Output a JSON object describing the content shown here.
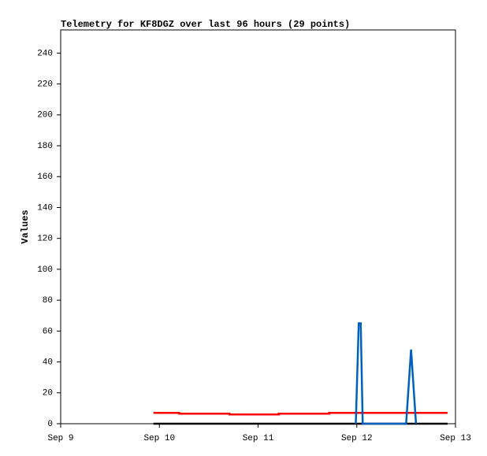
{
  "chart_data": {
    "type": "line",
    "title": "Telemetry for KF8DGZ over last 96 hours (29 points)",
    "y_label": "Values",
    "xlim": [
      0,
      4
    ],
    "xticks": [
      {
        "value": 0,
        "label": "Sep 9"
      },
      {
        "value": 1,
        "label": "Sep 10"
      },
      {
        "value": 2,
        "label": "Sep 11"
      },
      {
        "value": 3,
        "label": "Sep 12"
      },
      {
        "value": 4,
        "label": "Sep 13"
      }
    ],
    "ylim": [
      0,
      255
    ],
    "yticks": [
      0,
      20,
      40,
      60,
      80,
      100,
      120,
      140,
      160,
      180,
      200,
      220,
      240
    ],
    "series": [
      {
        "color": "#000000",
        "x": [
          0.94,
          3.92
        ],
        "values": [
          0,
          0
        ]
      },
      {
        "color": "#ff0000",
        "x": [
          0.94,
          1.2,
          1.2,
          1.71,
          1.71,
          2.21,
          2.21,
          2.72,
          2.72,
          3.92
        ],
        "values": [
          7,
          7,
          6.5,
          6.5,
          6,
          6,
          6.5,
          6.5,
          7,
          7
        ]
      },
      {
        "color": "#0060c0",
        "x": [
          2.99,
          3.02,
          3.04,
          3.06,
          3.5,
          3.55,
          3.6
        ],
        "values": [
          0,
          65,
          65,
          0,
          0,
          48,
          0
        ]
      }
    ]
  }
}
